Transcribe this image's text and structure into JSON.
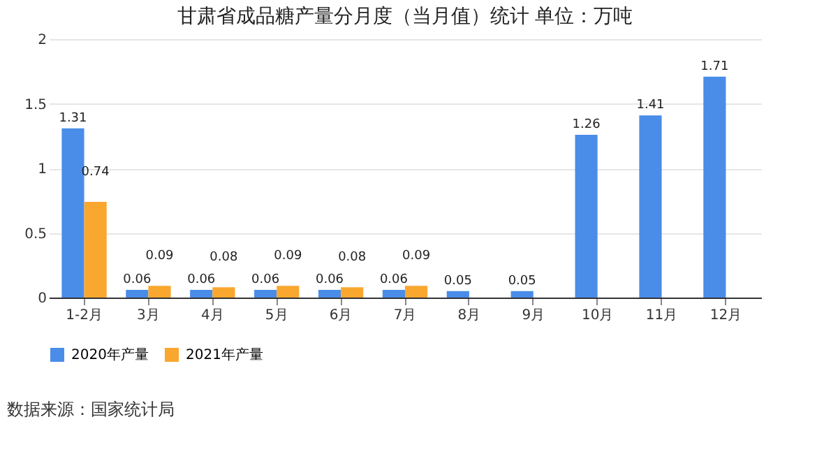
{
  "chart_data": {
    "type": "bar",
    "title": "甘肃省成品糖产量分月度（当月值）统计 单位：万吨",
    "categories": [
      "1-2月",
      "3月",
      "4月",
      "5月",
      "6月",
      "7月",
      "8月",
      "9月",
      "10月",
      "11月",
      "12月"
    ],
    "series": [
      {
        "name": "2020年产量",
        "color": "#4a8de8",
        "values": [
          1.31,
          0.06,
          0.06,
          0.06,
          0.06,
          0.06,
          0.05,
          0.05,
          1.26,
          1.41,
          1.71
        ]
      },
      {
        "name": "2021年产量",
        "color": "#f9a72f",
        "values": [
          0.74,
          0.09,
          0.08,
          0.09,
          0.08,
          0.09,
          null,
          null,
          null,
          null,
          null
        ]
      }
    ],
    "ylim": [
      0,
      2
    ],
    "yticks": [
      0,
      0.5,
      1,
      1.5,
      2
    ],
    "grid": "y",
    "legend": "bottom",
    "data_labels": true,
    "annotations": [
      "数据来源：国家统计局"
    ]
  }
}
